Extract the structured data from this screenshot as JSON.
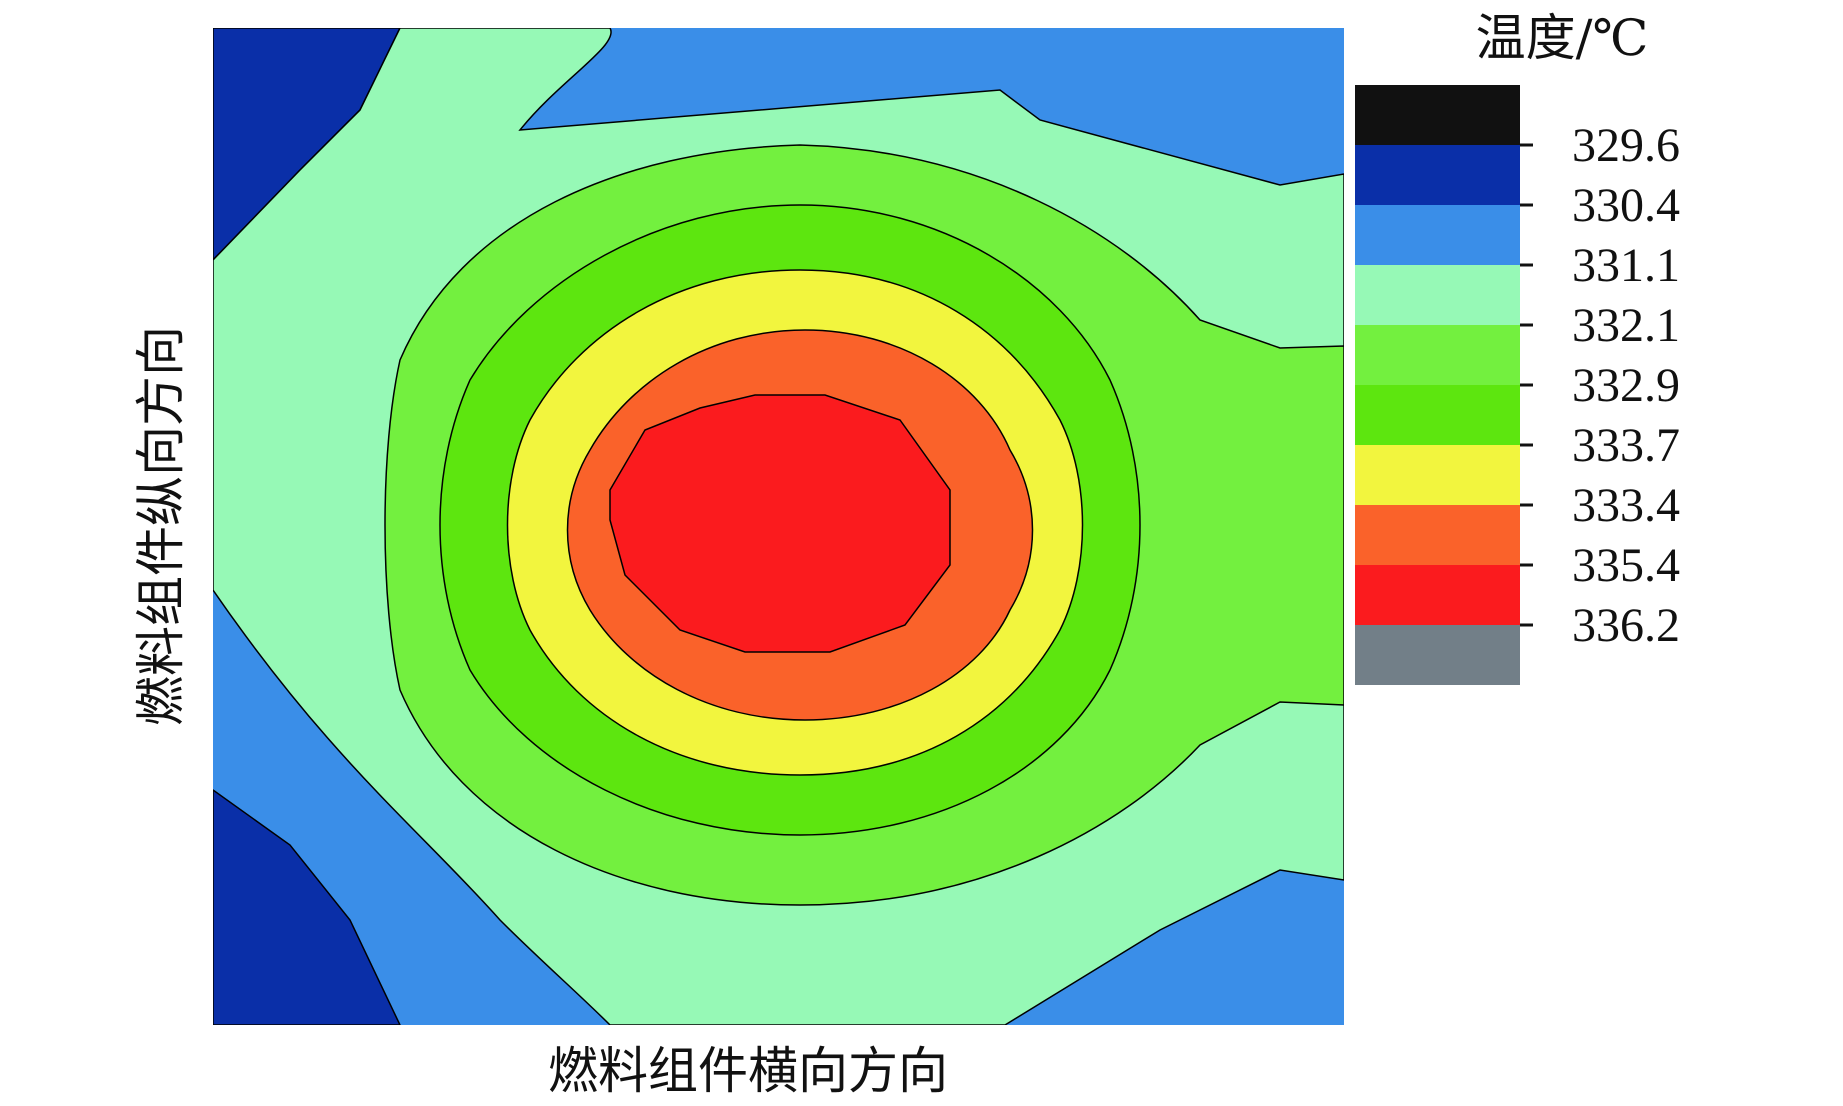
{
  "chart_data": {
    "type": "heatmap",
    "subtype": "filled-contour",
    "title": "",
    "xlabel": "燃料组件横向方向",
    "ylabel": "燃料组件纵向方向",
    "colorbar": {
      "title": "温度/℃",
      "tick_labels": [
        "329.6",
        "330.4",
        "331.1",
        "332.1",
        "332.9",
        "333.7",
        "333.4",
        "335.4",
        "336.2"
      ],
      "levels": [
        {
          "color": "#111111"
        },
        {
          "color": "#0a2fa8"
        },
        {
          "color": "#3a8ee8"
        },
        {
          "color": "#96f9b6"
        },
        {
          "color": "#73f03f"
        },
        {
          "color": "#5de60f"
        },
        {
          "color": "#f2f53e"
        },
        {
          "color": "#fa622a"
        },
        {
          "color": "#fb1b1e"
        },
        {
          "color": "#727f88"
        }
      ]
    },
    "field": {
      "hot_spot": "center-left",
      "cold_regions": [
        "top-left",
        "bottom-left",
        "top-right",
        "bottom-right"
      ],
      "contour_colors_outer_to_inner": [
        "#0a2fa8",
        "#3a8ee8",
        "#96f9b6",
        "#73f03f",
        "#5de60f",
        "#f2f53e",
        "#fa622a",
        "#fb1b1e"
      ]
    }
  }
}
